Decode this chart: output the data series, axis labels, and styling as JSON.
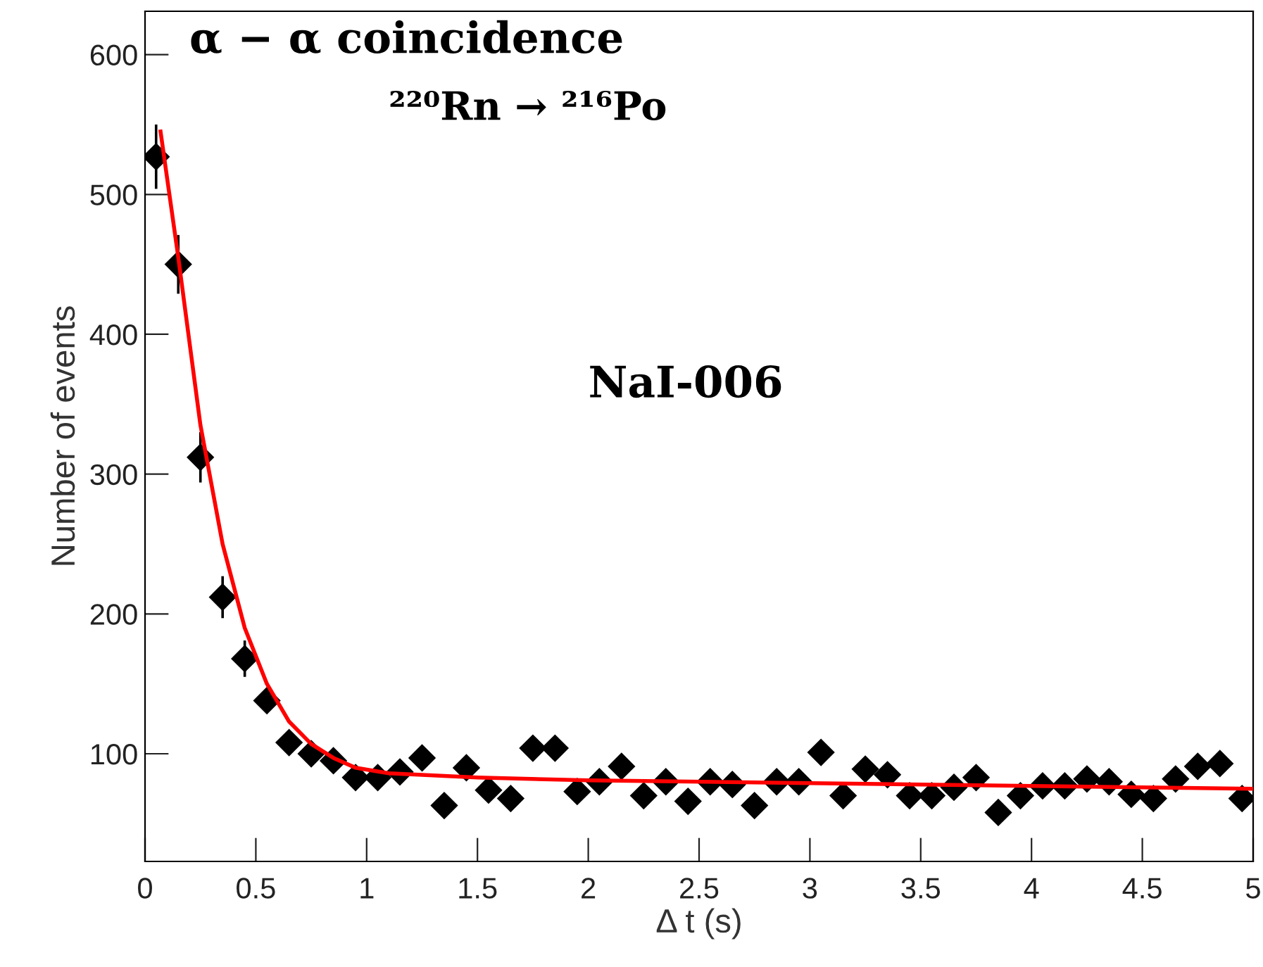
{
  "chart_data": {
    "type": "scatter",
    "xlabel": "Δ t (s)",
    "ylabel": "Number of events",
    "xlim": [
      0,
      5
    ],
    "ylim": [
      23,
      631
    ],
    "xticks": [
      0,
      0.5,
      1,
      1.5,
      2,
      2.5,
      3,
      3.5,
      4,
      4.5,
      5
    ],
    "yticks": [
      100,
      200,
      300,
      400,
      500,
      600
    ],
    "grid": false,
    "legend": false,
    "marker": "diamond",
    "annotations": [
      "α − α coincidence",
      "²²⁰Rn → ²¹⁶Po",
      "NaI-006"
    ],
    "series": [
      {
        "color": "#000000",
        "x": [
          0.05,
          0.15,
          0.25,
          0.35,
          0.45,
          0.55,
          0.65,
          0.75,
          0.85,
          0.95,
          1.05,
          1.15,
          1.25,
          1.35,
          1.45,
          1.55,
          1.65,
          1.75,
          1.85,
          1.95,
          2.05,
          2.15,
          2.25,
          2.35,
          2.45,
          2.55,
          2.65,
          2.75,
          2.85,
          2.95,
          3.05,
          3.15,
          3.25,
          3.35,
          3.45,
          3.55,
          3.65,
          3.75,
          3.85,
          3.95,
          4.05,
          4.15,
          4.25,
          4.35,
          4.45,
          4.55,
          4.65,
          4.75,
          4.85,
          4.95
        ],
        "values": [
          527,
          450,
          312,
          212,
          168,
          138,
          108,
          100,
          95,
          83,
          83,
          87,
          97,
          63,
          90,
          74,
          68,
          104,
          104,
          73,
          80,
          91,
          70,
          80,
          66,
          80,
          78,
          63,
          80,
          80,
          101,
          70,
          89,
          85,
          70,
          70,
          76,
          83,
          58,
          70,
          77,
          77,
          82,
          80,
          71,
          68,
          82,
          91,
          93,
          68
        ],
        "errors": [
          23,
          21,
          18,
          15,
          13,
          null,
          null,
          null,
          null,
          null,
          null,
          null,
          null,
          null,
          null,
          null,
          null,
          null,
          null,
          null,
          null,
          null,
          null,
          null,
          null,
          null,
          null,
          null,
          null,
          null,
          null,
          null,
          null,
          null,
          null,
          null,
          null,
          null,
          null,
          null,
          null,
          null,
          null,
          null,
          null,
          null,
          null,
          null,
          null,
          null
        ]
      },
      {
        "type": "line",
        "color": "#ff0000",
        "line_style": "solid",
        "marker": "none",
        "x": [
          0.07,
          0.15,
          0.25,
          0.35,
          0.45,
          0.55,
          0.65,
          0.75,
          0.85,
          0.95,
          1.1,
          1.5,
          2,
          3,
          4,
          5
        ],
        "values": [
          545,
          455,
          335,
          250,
          190,
          150,
          123,
          107,
          97,
          90,
          86,
          83,
          81,
          79,
          77,
          75
        ]
      }
    ]
  }
}
